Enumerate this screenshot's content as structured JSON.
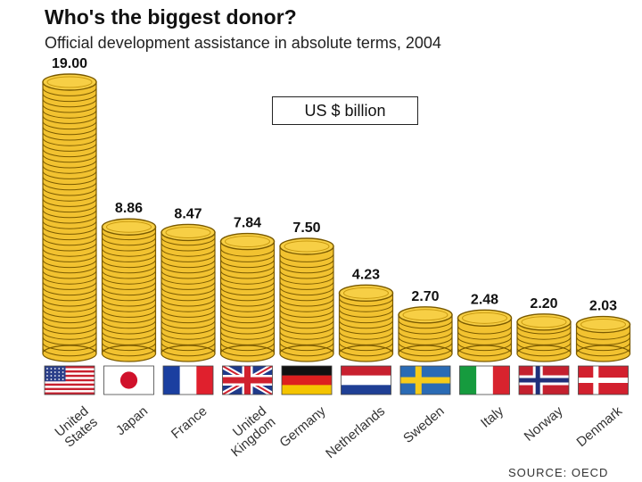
{
  "chart_data": {
    "type": "bar",
    "title": "Who's the biggest donor?",
    "subtitle": "Official development assistance in absolute terms, 2004",
    "unit_label": "US $ billion",
    "source": "SOURCE: OECD",
    "categories": [
      "United States",
      "Japan",
      "France",
      "United Kingdom",
      "Germany",
      "Netherlands",
      "Sweden",
      "Italy",
      "Norway",
      "Denmark"
    ],
    "category_lines": [
      [
        "United",
        "States"
      ],
      [
        "Japan"
      ],
      [
        "France"
      ],
      [
        "United",
        "Kingdom"
      ],
      [
        "Germany"
      ],
      [
        "Netherlands"
      ],
      [
        "Sweden"
      ],
      [
        "Italy"
      ],
      [
        "Norway"
      ],
      [
        "Denmark"
      ]
    ],
    "values": [
      19.0,
      8.86,
      8.47,
      7.84,
      7.5,
      4.23,
      2.7,
      2.48,
      2.2,
      2.03
    ],
    "value_labels": [
      "19.00",
      "8.86",
      "8.47",
      "7.84",
      "7.50",
      "4.23",
      "2.70",
      "2.48",
      "2.20",
      "2.03"
    ],
    "ylim": [
      0,
      19
    ],
    "flags": [
      "us",
      "japan",
      "france",
      "uk",
      "germany",
      "netherlands",
      "sweden",
      "italy",
      "norway",
      "denmark"
    ],
    "colors": {
      "coin_fill": "#f2c230",
      "coin_edge": "#7a5a00",
      "coin_top": "#f7cf45"
    }
  }
}
